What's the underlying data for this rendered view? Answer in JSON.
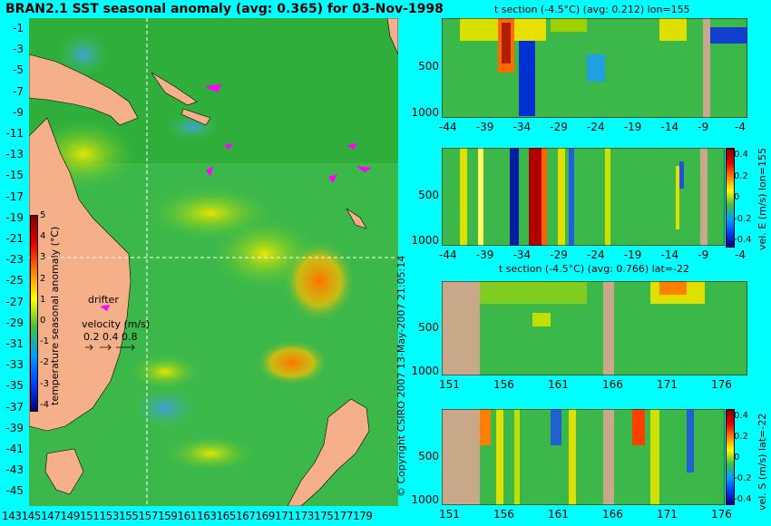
{
  "main_map": {
    "title": "BRAN2.1 SST seasonal anomaly (avg: 0.365) for 03-Nov-1998",
    "lat_ticks": [
      "-1",
      "-3",
      "-5",
      "-7",
      "-9",
      "-11",
      "-13",
      "-15",
      "-17",
      "-19",
      "-21",
      "-23",
      "-25",
      "-27",
      "-29",
      "-31",
      "-33",
      "-35",
      "-37",
      "-39",
      "-41",
      "-43",
      "-45"
    ],
    "lon_ticks": [
      "143",
      "145",
      "147",
      "149",
      "151",
      "153",
      "155",
      "157",
      "159",
      "161",
      "163",
      "165",
      "167",
      "169",
      "171",
      "173",
      "175",
      "177",
      "179"
    ],
    "colorbar": {
      "label": "temperature seasonal anomaly (°C)",
      "ticks": [
        "5",
        "4",
        "3",
        "2",
        "1",
        "0",
        "-1",
        "-2",
        "-3",
        "-4"
      ]
    },
    "drifter_label": "drifter",
    "velocity": {
      "label": "velocity (m/s)",
      "values": "0.2 0.4 0.8"
    }
  },
  "panels": [
    {
      "title": "t section (-4.5°C) (avg: 0.212) lon=155",
      "x_ticks": [
        "-44",
        "-39",
        "-34",
        "-29",
        "-24",
        "-19",
        "-14",
        "-9",
        "-4"
      ],
      "y_ticks": [
        "500",
        "1000"
      ]
    },
    {
      "title": "",
      "x_ticks": [
        "-44",
        "-39",
        "-34",
        "-29",
        "-24",
        "-19",
        "-14",
        "-9",
        "-4"
      ],
      "y_ticks": [
        "500",
        "1000"
      ],
      "colorbar_ticks": [
        "0.4",
        "0.2",
        "0",
        "-0.2",
        "-0.4"
      ],
      "side_label": "vel. E (m/s) lon=155"
    },
    {
      "title": "t section (-4.5°C) (avg: 0.766) lat=-22",
      "x_ticks": [
        "151",
        "156",
        "161",
        "166",
        "171",
        "176"
      ],
      "y_ticks": [
        "500",
        "1000"
      ]
    },
    {
      "title": "",
      "x_ticks": [
        "151",
        "156",
        "161",
        "166",
        "171",
        "176"
      ],
      "y_ticks": [
        "500",
        "1000"
      ],
      "colorbar_ticks": [
        "0.4",
        "0.2",
        "0",
        "-0.2",
        "-0.4"
      ],
      "side_label": "vel. S (m/s) lat=-22"
    }
  ],
  "copyright": "© Copyright CSIRO 2007  13-May-2007 21:05:14"
}
